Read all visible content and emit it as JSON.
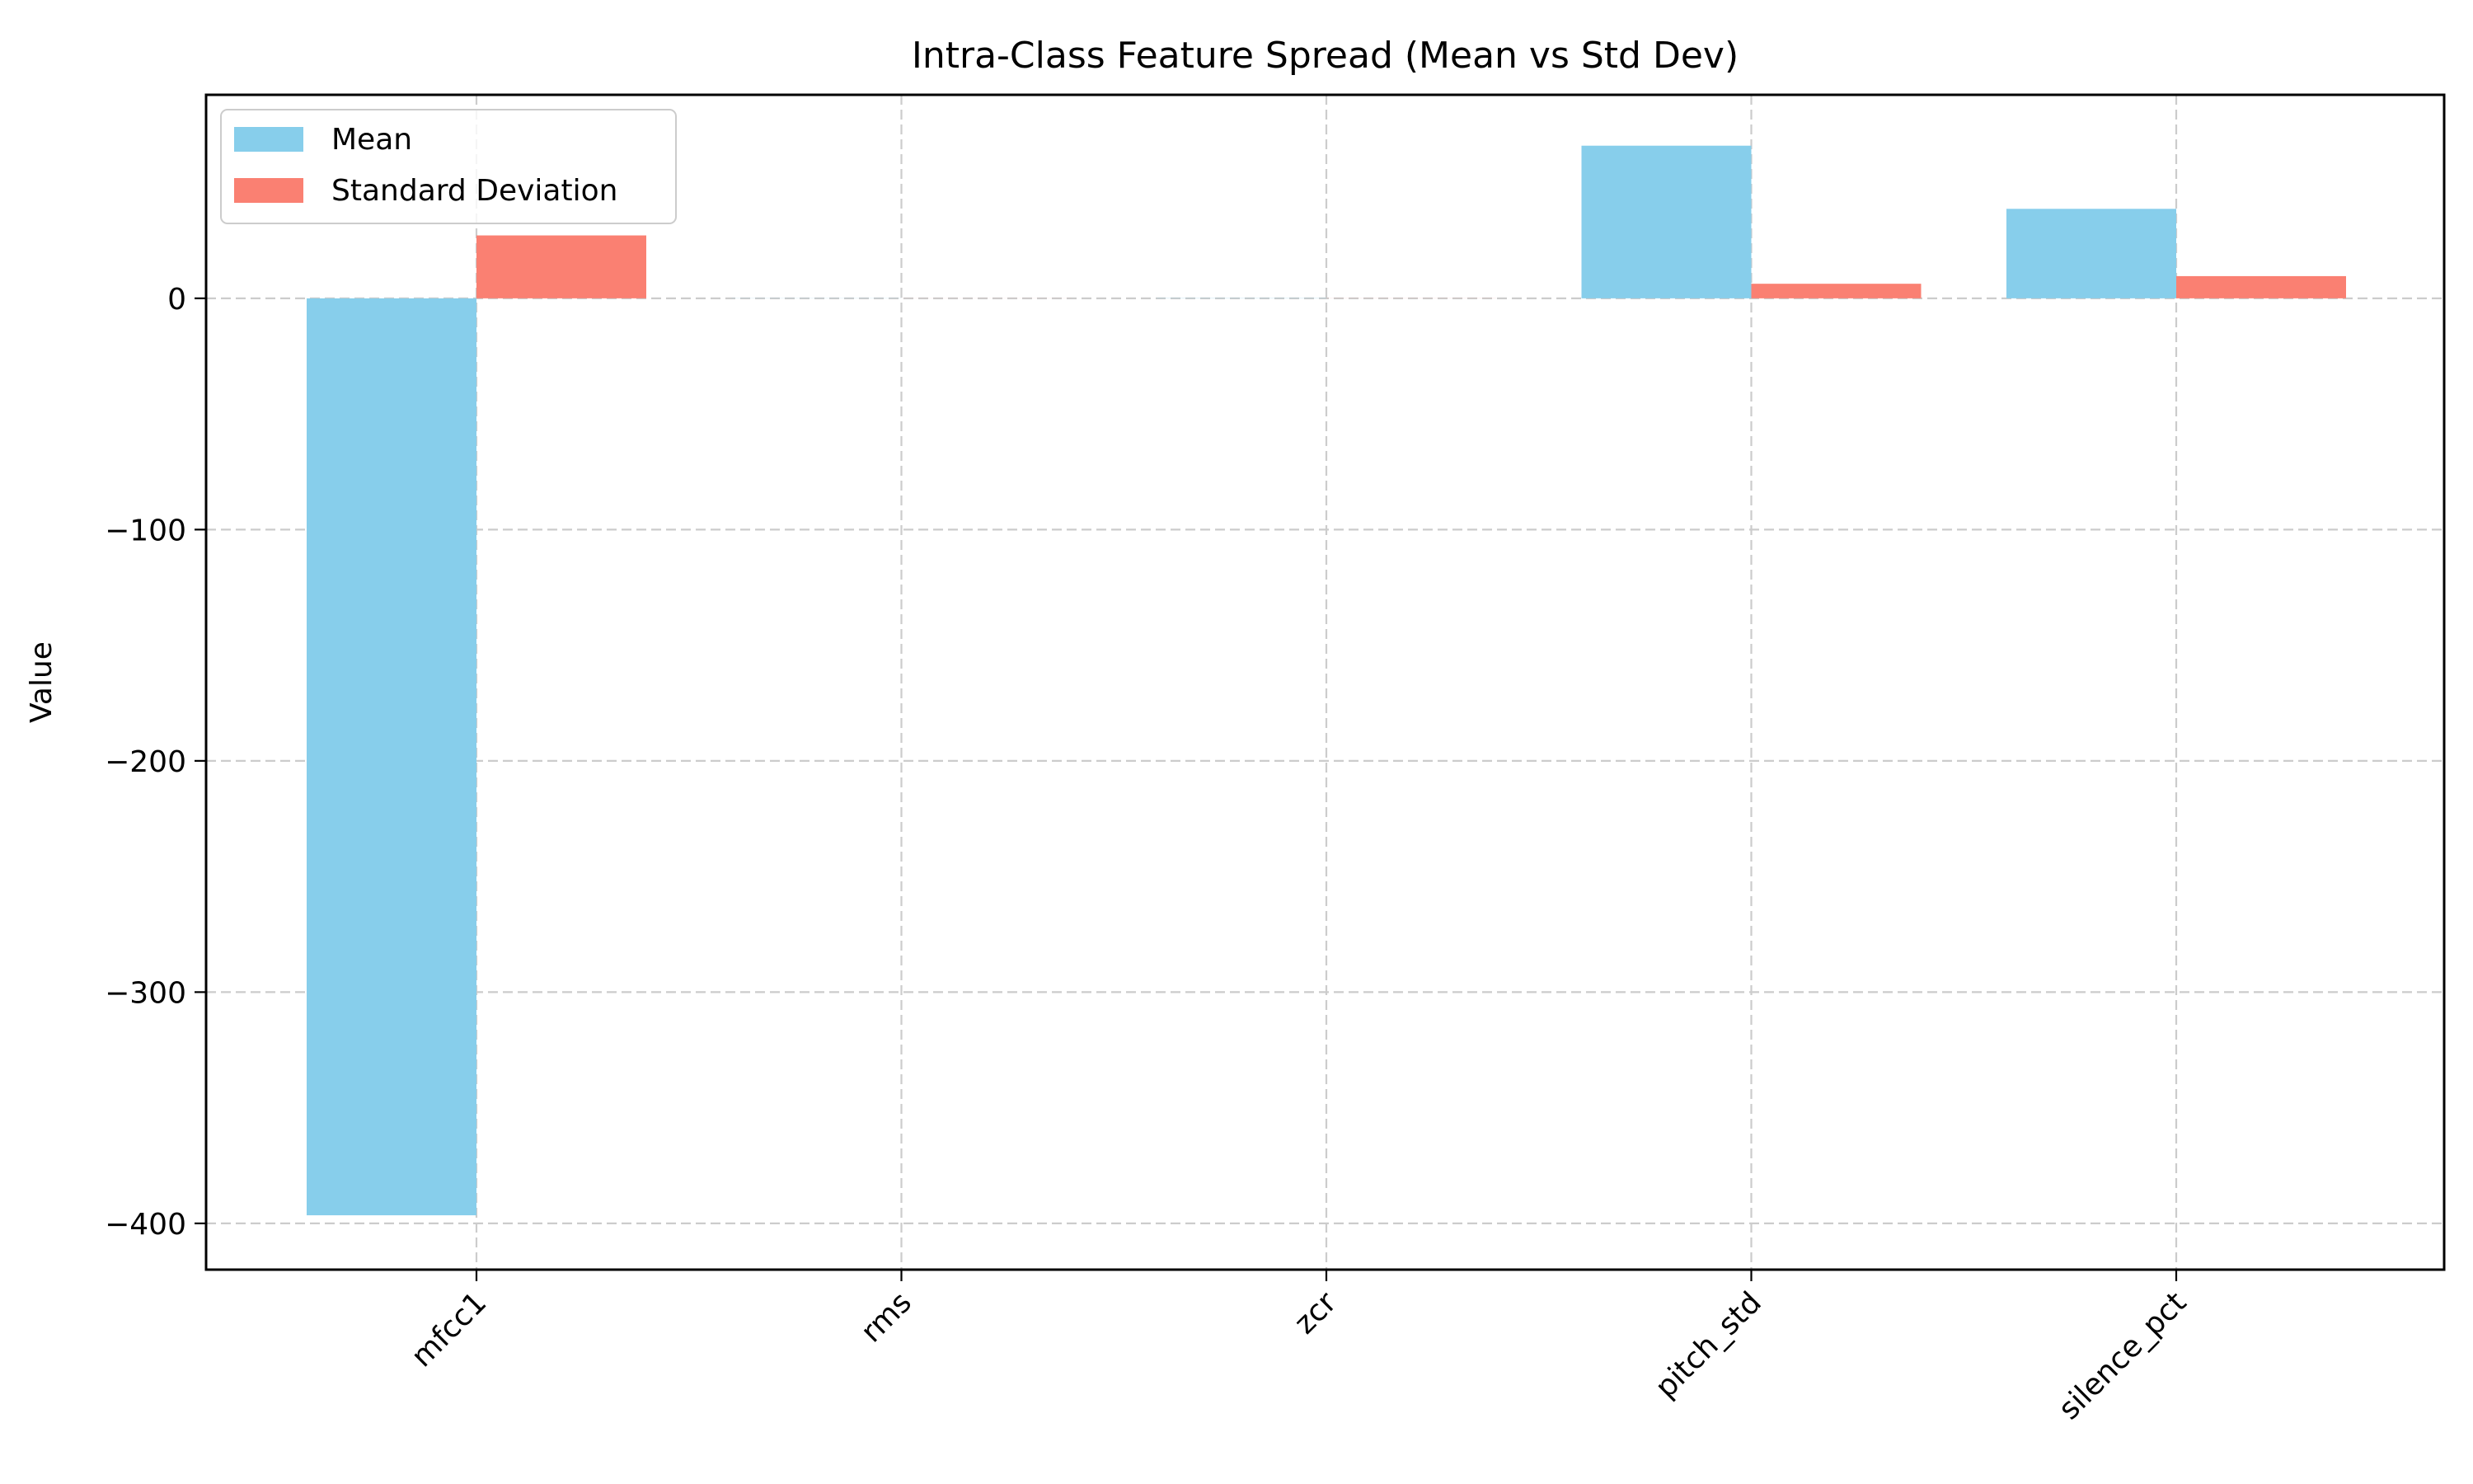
{
  "chart_data": {
    "type": "bar",
    "title": "Intra-Class Feature Spread (Mean vs Std Dev)",
    "xlabel": "",
    "ylabel": "Value",
    "categories": [
      "mfcc1",
      "rms",
      "zcr",
      "pitch_std",
      "silence_pct"
    ],
    "series": [
      {
        "name": "Mean",
        "color": "#87CEEB",
        "values": [
          -396.5,
          0.05,
          0.08,
          66.0,
          38.7
        ]
      },
      {
        "name": "Standard Deviation",
        "color": "#FA8072",
        "values": [
          27.2,
          0.02,
          0.03,
          6.3,
          9.6
        ]
      }
    ],
    "ylim": [
      -420,
      88
    ],
    "yticks": [
      0,
      -100,
      -200,
      -300,
      -400
    ],
    "ytick_labels": [
      "0",
      "−100",
      "−200",
      "−300",
      "−400"
    ],
    "grid": true,
    "legend_position": "upper left",
    "xtick_rotation": 45
  }
}
